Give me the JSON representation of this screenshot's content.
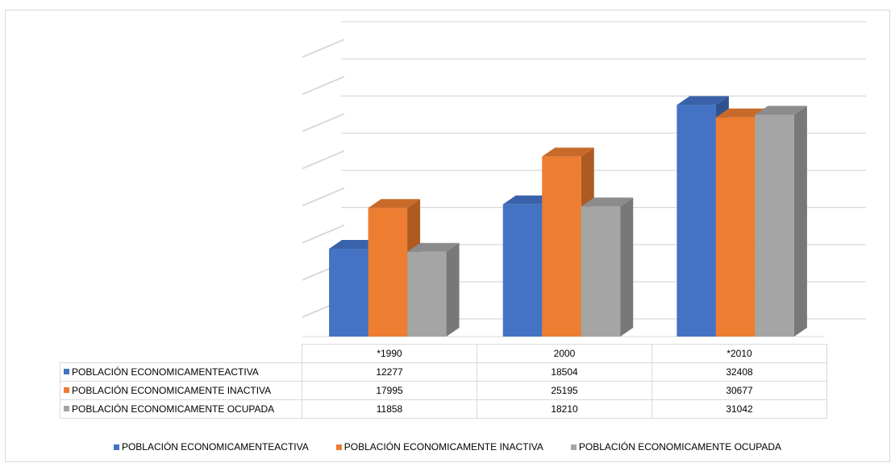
{
  "chart_data": {
    "type": "bar",
    "categories": [
      "*1990",
      "2000",
      "*2010"
    ],
    "series": [
      {
        "name": "POBLACIÓN ECONOMICAMENTEACTIVA",
        "values": [
          12277,
          18504,
          32408
        ],
        "color": "#4472C4",
        "side_color": "#2F528F",
        "top_color": "#3A62AA"
      },
      {
        "name": "POBLACIÓN ECONOMICAMENTE INACTIVA",
        "values": [
          17995,
          25195,
          30677
        ],
        "color": "#ED7D31",
        "side_color": "#AE5A21",
        "top_color": "#C96A2A"
      },
      {
        "name": "POBLACIÓN ECONOMICAMENTE OCUPADA",
        "values": [
          11858,
          18210,
          31042
        ],
        "color": "#A5A5A5",
        "side_color": "#787878",
        "top_color": "#8C8C8C"
      }
    ],
    "ylim": [
      0,
      40000
    ],
    "grid": true,
    "legend": "bottom",
    "data_table": true
  }
}
